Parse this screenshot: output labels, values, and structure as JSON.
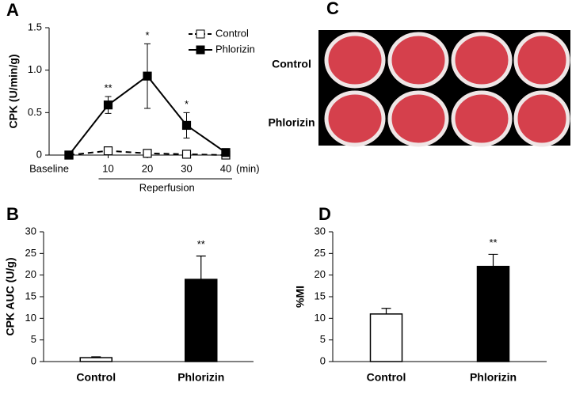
{
  "chart_data": [
    {
      "type": "line",
      "panel": "A",
      "ylabel": "CPK (U/min/g)",
      "categories": [
        "Baseline",
        "10",
        "20",
        "30",
        "40"
      ],
      "x_unit": "(min)",
      "group_label": "Reperfusion",
      "ylim": [
        0,
        1.5
      ],
      "yticks": [
        0,
        0.5,
        {
          "value": 1,
          "label": "1.0"
        },
        1.5
      ],
      "series": [
        {
          "name": "Control",
          "color": "#000000",
          "marker_face": "#ffffff",
          "linestyle": "dashed",
          "values": [
            0,
            0.05,
            0.02,
            0.01,
            0
          ]
        },
        {
          "name": "Phlorizin",
          "color": "#000000",
          "marker_face": "#000000",
          "linestyle": "solid",
          "values": [
            0,
            0.59,
            0.93,
            0.35,
            0.03
          ],
          "errors": [
            0,
            0.1,
            0.38,
            0.15,
            0.01
          ],
          "significance": [
            null,
            "**",
            "*",
            "*",
            null
          ]
        }
      ]
    },
    {
      "type": "bar",
      "panel": "B",
      "ylabel": "CPK AUC (U/g)",
      "categories": [
        "Control",
        "Phlorizin"
      ],
      "values": [
        0.9,
        19
      ],
      "errors": [
        0.2,
        5.4
      ],
      "colors": [
        "#ffffff",
        "#000000"
      ],
      "significance": [
        null,
        "**"
      ],
      "ylim": [
        0,
        30
      ],
      "yticks": [
        0,
        5,
        10,
        15,
        20,
        25,
        30
      ]
    },
    {
      "type": "image",
      "panel": "C",
      "row_labels": [
        "Control",
        "Phlorizin"
      ]
    },
    {
      "type": "bar",
      "panel": "D",
      "ylabel": "%MI",
      "categories": [
        "Control",
        "Phlorizin"
      ],
      "values": [
        11,
        22
      ],
      "errors": [
        1.3,
        2.8
      ],
      "colors": [
        "#ffffff",
        "#000000"
      ],
      "significance": [
        null,
        "**"
      ],
      "ylim": [
        0,
        30
      ],
      "yticks": [
        0,
        5,
        10,
        15,
        20,
        25,
        30
      ]
    }
  ]
}
